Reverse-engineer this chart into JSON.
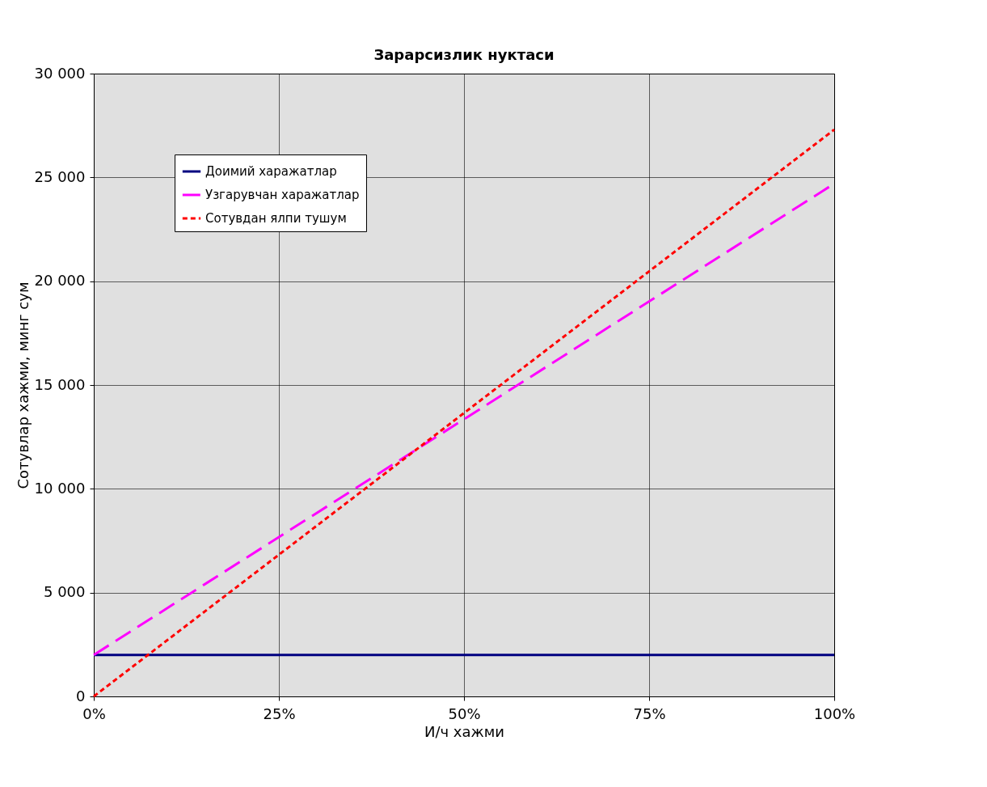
{
  "chart_data": {
    "type": "line",
    "title": "Зарарсизлик нуктаси",
    "xlabel": "И/ч хажми",
    "ylabel": "Сотувлар хажми, минг сум",
    "x": [
      0,
      100
    ],
    "series": [
      {
        "name": "Доимий харажатлар",
        "color": "#000080",
        "values": [
          2000,
          2000
        ],
        "line_style": "solid"
      },
      {
        "name": "Узгарувчан харажатлар",
        "color": "#ff00ff",
        "values": [
          2000,
          24700
        ],
        "line_style": "dashed"
      },
      {
        "name": "Сотувдан ялпи тушум",
        "color": "#ff0000",
        "values": [
          0,
          27300
        ],
        "line_style": "dotted"
      }
    ],
    "xlim": [
      0,
      100
    ],
    "xticks": [
      {
        "value": 0,
        "label": "0%"
      },
      {
        "value": 25,
        "label": "25%"
      },
      {
        "value": 50,
        "label": "50%"
      },
      {
        "value": 75,
        "label": "75%"
      },
      {
        "value": 100,
        "label": "100%"
      }
    ],
    "ylim": [
      0,
      30000
    ],
    "yticks": [
      0,
      {
        "value": 5000,
        "label": "5 000"
      },
      {
        "value": 10000,
        "label": "10 000"
      },
      {
        "value": 15000,
        "label": "15 000"
      },
      {
        "value": 20000,
        "label": "20 000"
      },
      {
        "value": 25000,
        "label": "25 000"
      },
      {
        "value": 30000,
        "label": "30 000"
      }
    ],
    "grid": true,
    "legend": "top left",
    "marker": "none"
  }
}
